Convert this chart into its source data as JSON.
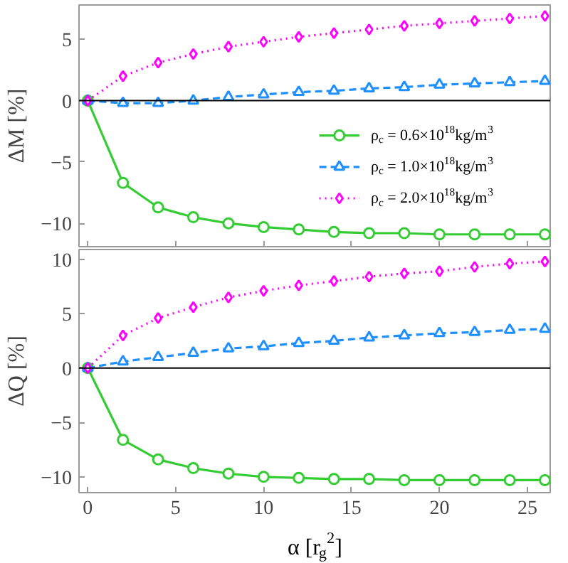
{
  "chart_data": [
    {
      "type": "line",
      "x": [
        0,
        2,
        4,
        6,
        8,
        10,
        12,
        14,
        16,
        18,
        20,
        22,
        24,
        26
      ],
      "ylabel": "ΔM [%]",
      "xlim": [
        -0.5,
        26.3
      ],
      "xticks": [
        0,
        5,
        10,
        15,
        20,
        25
      ],
      "ylim": [
        -11.9,
        7.8
      ],
      "yticks": [
        -10,
        -5,
        0,
        5
      ],
      "tick_labels": "y",
      "grid": false,
      "legend": "right",
      "ref_lines": [
        {
          "axis": "y",
          "value": 0,
          "color": "#000000"
        }
      ],
      "series": [
        {
          "name": "ρ$_{c}$ = 0.6×10$^{18}$kg/m$^{3}$",
          "color": "#33cc33",
          "marker": "circle",
          "line_style": "solid",
          "values": [
            0,
            -6.7,
            -8.7,
            -9.5,
            -10.0,
            -10.3,
            -10.5,
            -10.7,
            -10.8,
            -10.8,
            -10.9,
            -10.9,
            -10.9,
            -10.9
          ]
        },
        {
          "name": "ρ$_{c}$ = 1.0×10$^{18}$kg/m$^{3}$",
          "color": "#1e8fff",
          "marker": "triangle",
          "line_style": "dashed",
          "values": [
            0,
            -0.2,
            -0.2,
            0.0,
            0.3,
            0.5,
            0.7,
            0.8,
            1.0,
            1.1,
            1.3,
            1.4,
            1.5,
            1.6
          ]
        },
        {
          "name": "ρ$_{c}$ = 2.0×10$^{18}$kg/m$^{3}$",
          "color": "#ff00ff",
          "marker": "diamond",
          "line_style": "dotted",
          "values": [
            0,
            2.0,
            3.1,
            3.8,
            4.4,
            4.8,
            5.2,
            5.5,
            5.8,
            6.1,
            6.3,
            6.5,
            6.7,
            6.9
          ]
        }
      ]
    },
    {
      "type": "line",
      "x": [
        0,
        2,
        4,
        6,
        8,
        10,
        12,
        14,
        16,
        18,
        20,
        22,
        24,
        26
      ],
      "ylabel": "ΔQ [%]",
      "xlabel": "α [r$_{g}$$^{2}$]",
      "xlim": [
        -0.5,
        26.3
      ],
      "xticks": [
        0,
        5,
        10,
        15,
        20,
        25
      ],
      "ylim": [
        -11.45,
        10.9
      ],
      "yticks": [
        -10,
        -5,
        0,
        5,
        10
      ],
      "grid": false,
      "ref_lines": [
        {
          "axis": "y",
          "value": 0,
          "color": "#000000"
        }
      ],
      "series": [
        {
          "color": "#33cc33",
          "marker": "circle",
          "line_style": "solid",
          "values": [
            0,
            -6.6,
            -8.4,
            -9.2,
            -9.7,
            -10.0,
            -10.1,
            -10.2,
            -10.2,
            -10.3,
            -10.3,
            -10.3,
            -10.3,
            -10.3
          ]
        },
        {
          "color": "#1e8fff",
          "marker": "triangle",
          "line_style": "dashed",
          "values": [
            0,
            0.6,
            1.0,
            1.4,
            1.8,
            2.0,
            2.3,
            2.5,
            2.8,
            3.0,
            3.2,
            3.3,
            3.5,
            3.6
          ]
        },
        {
          "color": "#ff00ff",
          "marker": "diamond",
          "line_style": "dotted",
          "values": [
            0,
            3.0,
            4.6,
            5.6,
            6.5,
            7.1,
            7.6,
            8.0,
            8.4,
            8.7,
            8.9,
            9.3,
            9.6,
            9.8
          ]
        }
      ]
    }
  ]
}
